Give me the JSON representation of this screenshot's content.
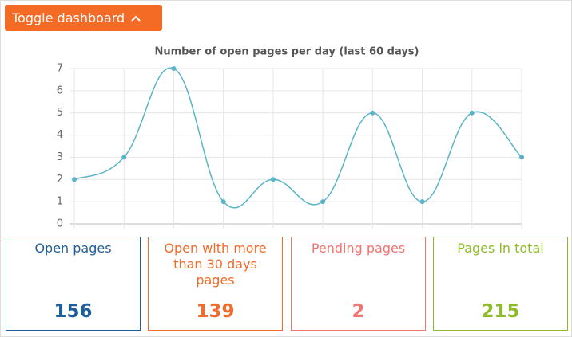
{
  "header": {
    "button": "Toggle dashboard"
  },
  "chart_data": {
    "type": "line",
    "title": "Number of open pages per day (last 60 days)",
    "categories": [
      null,
      null,
      null,
      null,
      null,
      null,
      null,
      null,
      null,
      null
    ],
    "series": [
      {
        "color": "#5ab4c8",
        "values": [
          2,
          3,
          7,
          1,
          2,
          1,
          5,
          1,
          5,
          3
        ]
      }
    ],
    "ylim": [
      0,
      7
    ],
    "yticks": [
      0,
      1,
      2,
      3,
      4,
      5,
      6,
      7
    ],
    "grid": true
  },
  "cards": [
    {
      "label": "Open pages",
      "value": 156,
      "color": "#1f5f99"
    },
    {
      "label": "Open with more than 30 days pages",
      "value": 139,
      "color": "#f26b2a"
    },
    {
      "label": "Pending pages",
      "value": 2,
      "color": "#f07470"
    },
    {
      "label": "Pages in total",
      "value": 215,
      "color": "#8dbb2a"
    }
  ]
}
